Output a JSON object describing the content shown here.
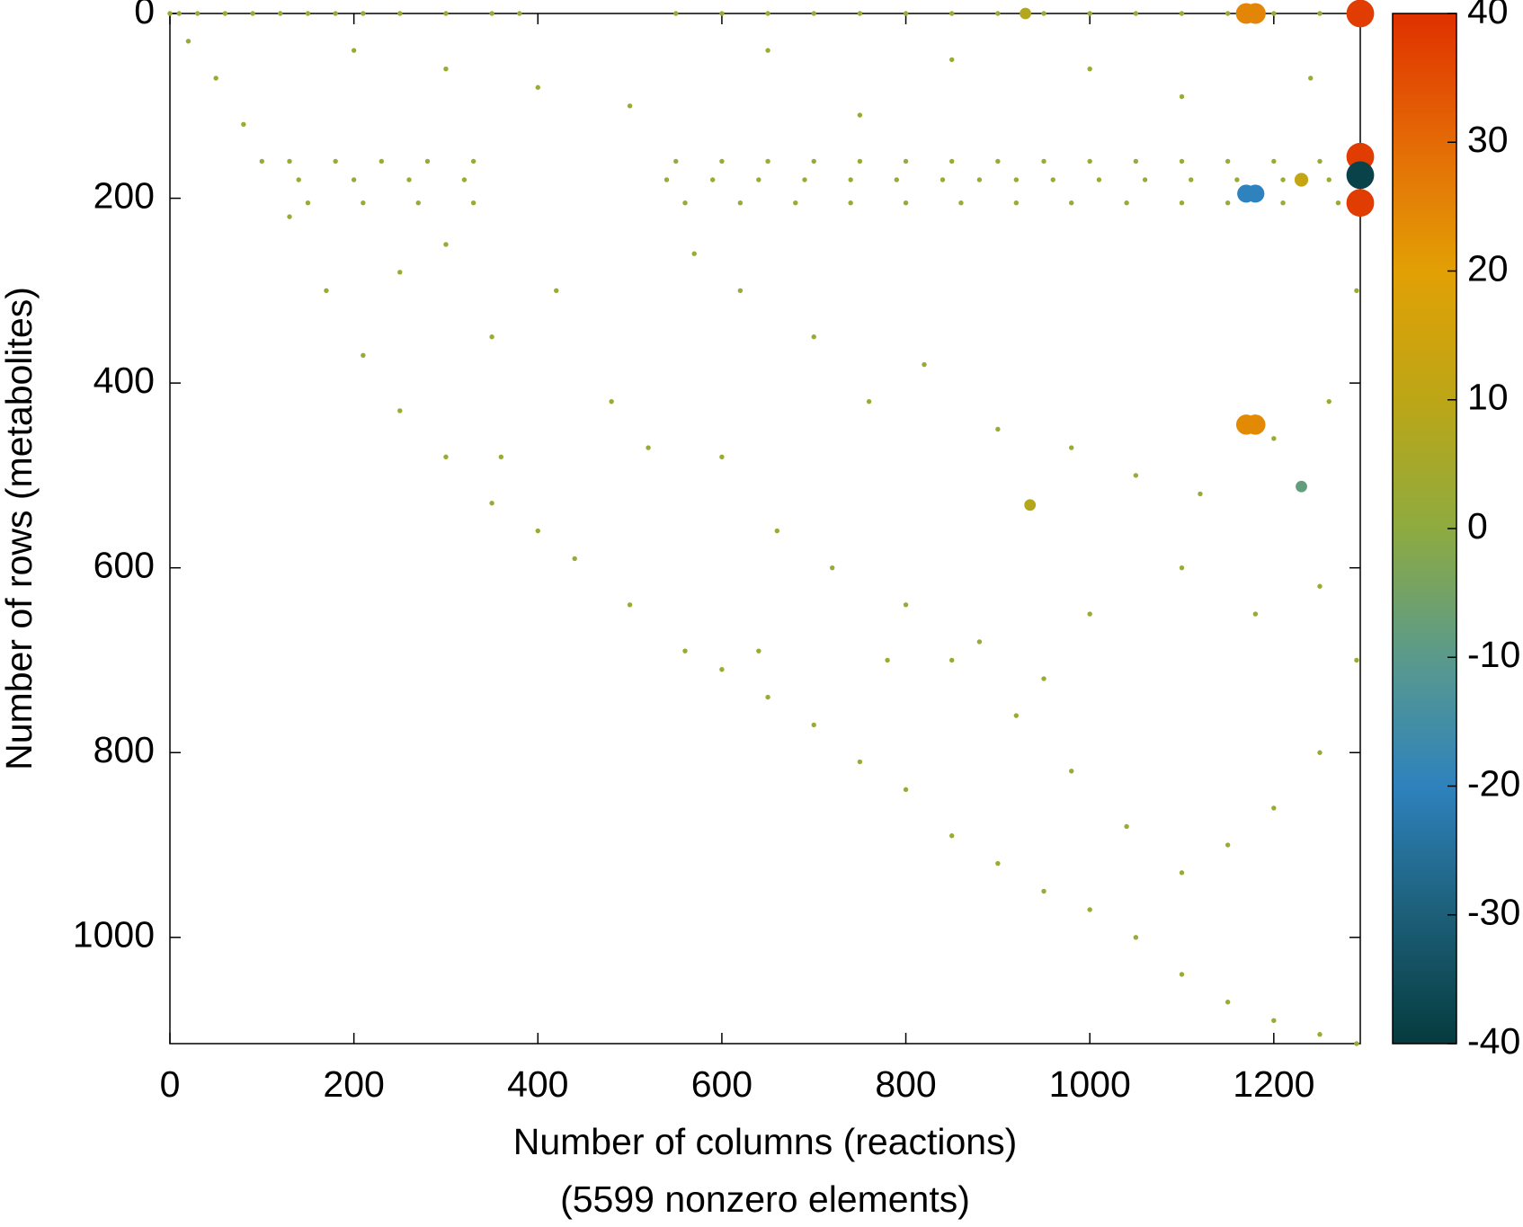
{
  "chart_data": {
    "type": "scatter",
    "x_label": "Number of columns (reactions)",
    "x_label_note": "(5599 nonzero elements)",
    "y_label": "Number of rows (metabolites)",
    "xlim": [
      0,
      1294
    ],
    "ylim": [
      1115,
      0
    ],
    "xticks": [
      0,
      200,
      400,
      600,
      800,
      1000,
      1200
    ],
    "yticks": [
      0,
      200,
      400,
      600,
      800,
      1000
    ],
    "clim": [
      -40,
      40
    ],
    "cticks": [
      -40,
      -30,
      -20,
      -10,
      0,
      10,
      20,
      30,
      40
    ],
    "colorscale": [
      [
        -40,
        "#053b3e"
      ],
      [
        -30,
        "#1d5f78"
      ],
      [
        -20,
        "#2e82bd"
      ],
      [
        -10,
        "#5a9a8c"
      ],
      [
        0,
        "#8eab40"
      ],
      [
        10,
        "#bca616"
      ],
      [
        20,
        "#e2a005"
      ],
      [
        30,
        "#e46a06"
      ],
      [
        40,
        "#e03000"
      ]
    ],
    "x": [
      0,
      20,
      50,
      80,
      100,
      130,
      170,
      210,
      250,
      300,
      350,
      400,
      440,
      500,
      560,
      600,
      650,
      700,
      750,
      800,
      850,
      900,
      950,
      1000,
      1050,
      1100,
      1150,
      1200,
      1250,
      1290,
      10,
      30,
      60,
      90,
      120,
      150,
      180,
      210,
      250,
      300,
      350,
      380,
      550,
      600,
      650,
      700,
      750,
      800,
      850,
      900,
      950,
      1000,
      1050,
      1100,
      1150,
      1200,
      1250,
      130,
      180,
      230,
      280,
      330,
      550,
      600,
      650,
      700,
      750,
      800,
      850,
      900,
      950,
      1000,
      1050,
      1100,
      1150,
      1200,
      1250,
      140,
      200,
      260,
      320,
      540,
      590,
      640,
      690,
      740,
      790,
      840,
      880,
      920,
      960,
      1010,
      1060,
      1110,
      1160,
      1210,
      1260,
      150,
      210,
      270,
      330,
      560,
      620,
      680,
      740,
      800,
      860,
      920,
      980,
      1040,
      1100,
      1150,
      1210,
      1270,
      570,
      620,
      700,
      760,
      820,
      900,
      980,
      1050,
      1120,
      1200,
      1260,
      600,
      660,
      720,
      800,
      850,
      920,
      980,
      1040,
      1100,
      1150,
      1200,
      1250,
      1290,
      1250,
      1180,
      1100,
      1000,
      950,
      880,
      780,
      640,
      300,
      250,
      350,
      420,
      480,
      520,
      360,
      200,
      300,
      400,
      500,
      650,
      750,
      850,
      1000,
      1100,
      1240,
      1290,
      930,
      1170,
      1180,
      1294,
      1294,
      1294,
      1294,
      1170,
      1180,
      1170,
      1180,
      935,
      1230,
      1230
    ],
    "y": [
      0,
      30,
      70,
      120,
      160,
      220,
      300,
      370,
      430,
      480,
      530,
      560,
      590,
      640,
      690,
      710,
      740,
      770,
      810,
      840,
      890,
      920,
      950,
      970,
      1000,
      1040,
      1070,
      1090,
      1105,
      1115,
      0,
      0,
      0,
      0,
      0,
      0,
      0,
      0,
      0,
      0,
      0,
      0,
      0,
      0,
      0,
      0,
      0,
      0,
      0,
      0,
      0,
      0,
      0,
      0,
      0,
      0,
      0,
      160,
      160,
      160,
      160,
      160,
      160,
      160,
      160,
      160,
      160,
      160,
      160,
      160,
      160,
      160,
      160,
      160,
      160,
      160,
      160,
      180,
      180,
      180,
      180,
      180,
      180,
      180,
      180,
      180,
      180,
      180,
      180,
      180,
      180,
      180,
      180,
      180,
      180,
      180,
      180,
      205,
      205,
      205,
      205,
      205,
      205,
      205,
      205,
      205,
      205,
      205,
      205,
      205,
      205,
      205,
      205,
      205,
      260,
      300,
      350,
      420,
      380,
      450,
      470,
      500,
      520,
      460,
      420,
      480,
      560,
      600,
      640,
      700,
      760,
      820,
      880,
      930,
      900,
      860,
      800,
      700,
      620,
      650,
      600,
      650,
      720,
      680,
      700,
      690,
      250,
      280,
      350,
      300,
      420,
      470,
      480,
      40,
      60,
      80,
      100,
      40,
      110,
      50,
      60,
      90,
      70,
      300,
      0,
      0,
      0,
      0,
      155,
      175,
      205,
      195,
      195,
      445,
      445,
      532,
      512,
      180
    ],
    "values": [
      3,
      3,
      3,
      3,
      3,
      3,
      3,
      3,
      3,
      3,
      3,
      3,
      3,
      3,
      3,
      3,
      3,
      3,
      3,
      3,
      3,
      3,
      3,
      3,
      3,
      3,
      3,
      3,
      3,
      3,
      3,
      3,
      3,
      3,
      3,
      3,
      3,
      3,
      3,
      3,
      3,
      3,
      3,
      3,
      3,
      3,
      3,
      3,
      3,
      3,
      3,
      3,
      3,
      3,
      3,
      3,
      3,
      3,
      3,
      3,
      3,
      3,
      3,
      3,
      3,
      3,
      3,
      3,
      3,
      3,
      3,
      3,
      3,
      3,
      3,
      3,
      3,
      3,
      3,
      3,
      3,
      3,
      3,
      3,
      3,
      3,
      3,
      3,
      3,
      3,
      3,
      3,
      3,
      3,
      3,
      3,
      3,
      3,
      3,
      3,
      3,
      3,
      3,
      3,
      3,
      3,
      3,
      3,
      3,
      3,
      3,
      3,
      3,
      3,
      3,
      3,
      3,
      3,
      3,
      3,
      3,
      3,
      3,
      3,
      3,
      3,
      3,
      3,
      3,
      3,
      3,
      3,
      3,
      3,
      3,
      3,
      3,
      3,
      3,
      3,
      3,
      3,
      3,
      3,
      3,
      3,
      3,
      3,
      3,
      3,
      3,
      3,
      3,
      3,
      3,
      3,
      3,
      3,
      3,
      3,
      3,
      3,
      3,
      3,
      8,
      25,
      25,
      38,
      38,
      -38,
      38,
      -20,
      -20,
      24,
      24,
      8,
      -8,
      12
    ]
  }
}
